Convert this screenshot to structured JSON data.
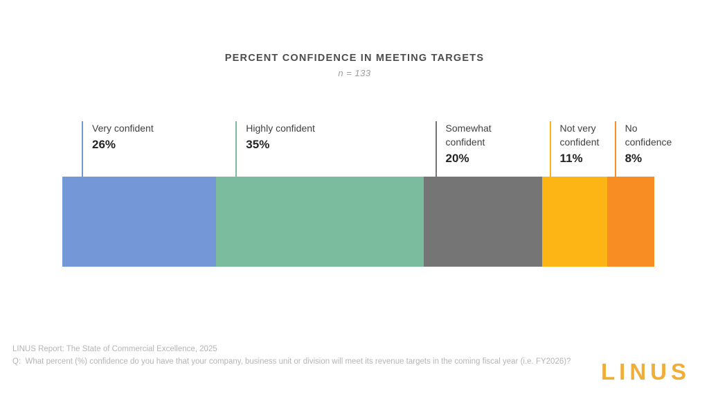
{
  "chart_data": {
    "type": "bar",
    "orientation": "horizontal-stacked-single-bar",
    "title": "PERCENT CONFIDENCE IN MEETING TARGETS",
    "subtitle": "n = 133",
    "sample_size": 133,
    "categories": [
      "Very confident",
      "Highly confident",
      "Somewhat confident",
      "Not very confident",
      "No confidence"
    ],
    "values": [
      26,
      35,
      20,
      11,
      8
    ],
    "value_labels": [
      "26%",
      "35%",
      "20%",
      "11%",
      "8%"
    ],
    "colors": [
      "#7397D7",
      "#7CBC9E",
      "#757575",
      "#FDB515",
      "#F78D23"
    ],
    "xlim": [
      0,
      100
    ],
    "unit": "%",
    "grid": false,
    "legend_position": "callouts-above-bar"
  },
  "footer": {
    "source_line": "LINUS Report: The State of Commercial Excellence, 2025",
    "question_line": "Q:  What percent (%) confidence do you have that your company, business unit or division will meet its revenue targets in the coming fiscal year (i.e. FY2026)?"
  },
  "logo": {
    "text": "LINUS",
    "color": "#F0AE38"
  }
}
